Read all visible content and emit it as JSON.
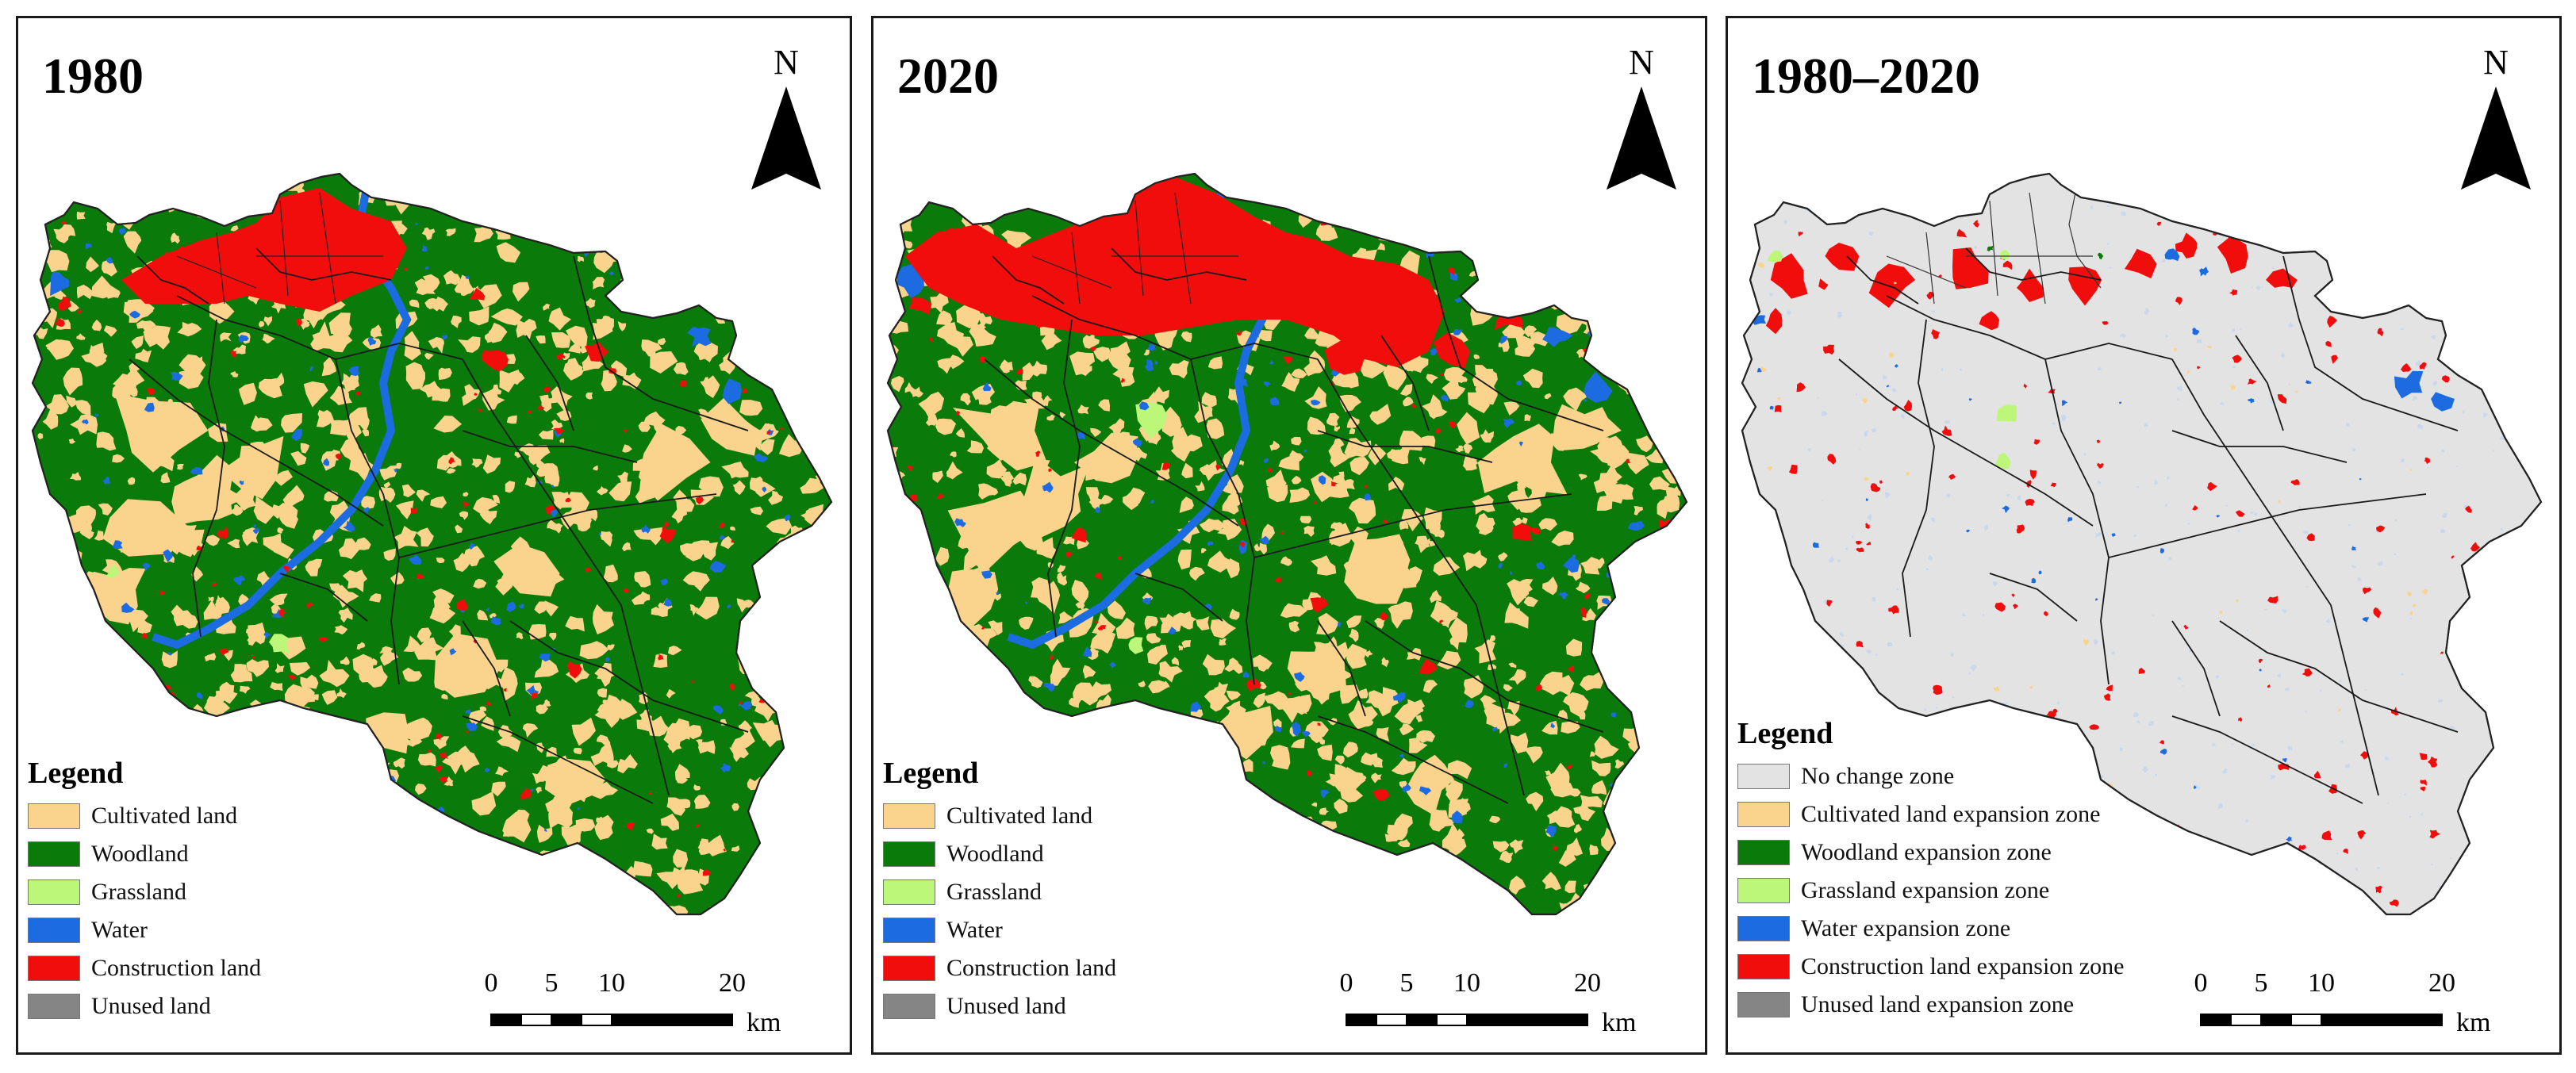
{
  "panels": [
    {
      "title": "1980",
      "north_label": "N",
      "legend": {
        "title": "Legend",
        "items": [
          {
            "label": "Cultivated land",
            "color": "#FAD38C"
          },
          {
            "label": "Woodland",
            "color": "#0A7A0A"
          },
          {
            "label": "Grassland",
            "color": "#BDF77A"
          },
          {
            "label": "Water",
            "color": "#1C6BE0"
          },
          {
            "label": "Construction land",
            "color": "#F20D0D"
          },
          {
            "label": "Unused land",
            "color": "#858585"
          }
        ]
      },
      "scalebar": {
        "ticks": [
          "0",
          "5",
          "10",
          "20"
        ],
        "unit": "km"
      }
    },
    {
      "title": "2020",
      "north_label": "N",
      "legend": {
        "title": "Legend",
        "items": [
          {
            "label": "Cultivated land",
            "color": "#FAD38C"
          },
          {
            "label": "Woodland",
            "color": "#0A7A0A"
          },
          {
            "label": "Grassland",
            "color": "#BDF77A"
          },
          {
            "label": "Water",
            "color": "#1C6BE0"
          },
          {
            "label": "Construction land",
            "color": "#F20D0D"
          },
          {
            "label": "Unused land",
            "color": "#858585"
          }
        ]
      },
      "scalebar": {
        "ticks": [
          "0",
          "5",
          "10",
          "20"
        ],
        "unit": "km"
      }
    },
    {
      "title": "1980–2020",
      "north_label": "N",
      "legend": {
        "title": "Legend",
        "items": [
          {
            "label": "No change zone",
            "color": "#E3E3E3"
          },
          {
            "label": "Cultivated land expansion zone",
            "color": "#FAD38C"
          },
          {
            "label": "Woodland expansion zone",
            "color": "#0A7A0A"
          },
          {
            "label": "Grassland expansion zone",
            "color": "#BDF77A"
          },
          {
            "label": "Water expansion zone",
            "color": "#1C6BE0"
          },
          {
            "label": "Construction land expansion zone",
            "color": "#F20D0D"
          },
          {
            "label": "Unused land expansion zone",
            "color": "#858585"
          }
        ]
      },
      "scalebar": {
        "ticks": [
          "0",
          "5",
          "10",
          "20"
        ],
        "unit": "km"
      }
    }
  ]
}
